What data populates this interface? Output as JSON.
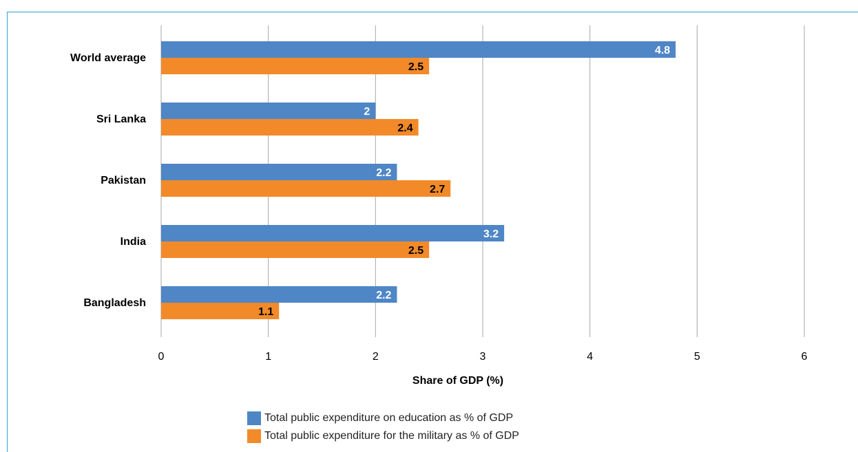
{
  "figure": {
    "title": ""
  },
  "chart_data": {
    "type": "bar",
    "orientation": "horizontal",
    "categories": [
      "World average",
      "Sri Lanka",
      "Pakistan",
      "India",
      "Bangladesh"
    ],
    "series": [
      {
        "name": "Total public expenditure on education as % of GDP",
        "values": [
          4.8,
          2.0,
          2.2,
          3.2,
          2.2
        ],
        "value_labels": [
          "4.8",
          "2",
          "2.2",
          "3.2",
          "2.2"
        ],
        "color": "#4f86c6"
      },
      {
        "name": "Total public expenditure for the military as % of GDP",
        "values": [
          2.5,
          2.4,
          2.7,
          2.5,
          1.1
        ],
        "value_labels": [
          "2.5",
          "2.4",
          "2.7",
          "2.5",
          "1.1"
        ],
        "color": "#f28a2a"
      }
    ],
    "xlabel": "Share of GDP (%)",
    "ylabel": "",
    "xlim": [
      0,
      6
    ],
    "xticks": [
      "0",
      "1",
      "2",
      "3",
      "4",
      "5",
      "6"
    ],
    "grid": "vertical",
    "legend_position": "bottom"
  },
  "colors": {
    "gridline": "#a6a6a6",
    "frame": "#29a3dd",
    "title": "#2a9fd8"
  }
}
